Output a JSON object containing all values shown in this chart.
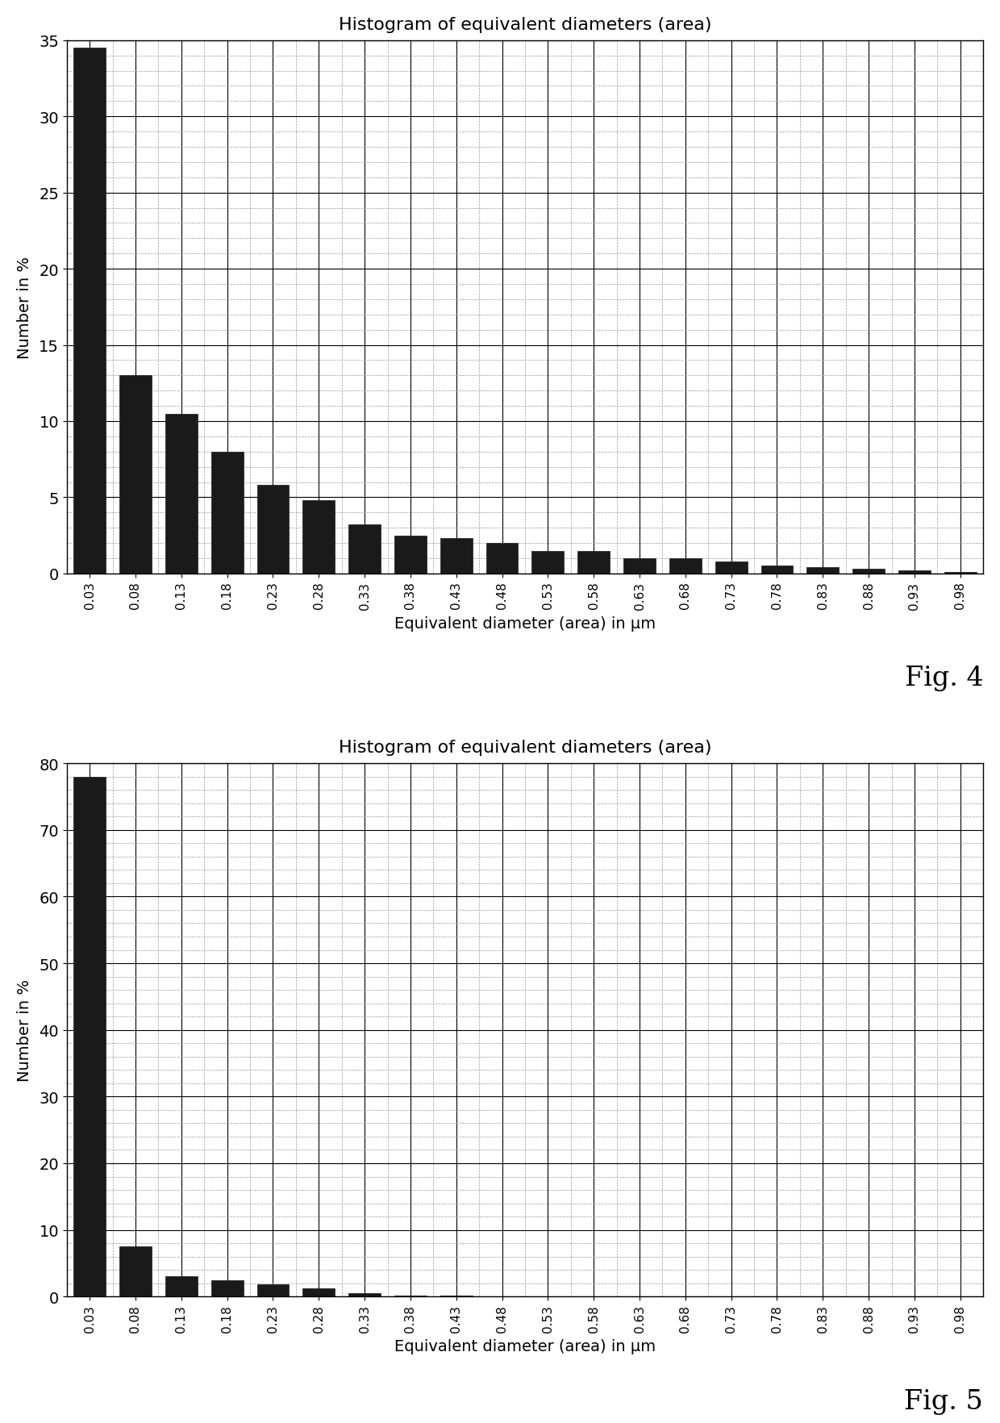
{
  "fig4": {
    "title": "Histogram of equivalent diameters (area)",
    "xlabel": "Equivalent diameter (area) in μm",
    "ylabel": "Number in %",
    "fig_label": "Fig. 4",
    "ylim": [
      0,
      35
    ],
    "yticks": [
      0,
      5,
      10,
      15,
      20,
      25,
      30,
      35
    ],
    "bar_color": "#1a1a1a",
    "values": [
      34.5,
      13.0,
      10.5,
      8.0,
      5.8,
      4.8,
      3.2,
      2.5,
      2.3,
      2.0,
      1.5,
      1.5,
      1.0,
      1.0,
      0.8,
      0.5,
      0.4,
      0.3,
      0.2,
      0.1
    ]
  },
  "fig5": {
    "title": "Histogram of equivalent diameters (area)",
    "xlabel": "Equivalent diameter (area) in μm",
    "ylabel": "Number in %",
    "fig_label": "Fig. 5",
    "ylim": [
      0,
      80
    ],
    "yticks": [
      0,
      10,
      20,
      30,
      40,
      50,
      60,
      70,
      80
    ],
    "bar_color": "#1a1a1a",
    "values": [
      78.0,
      7.5,
      3.0,
      2.5,
      1.8,
      1.2,
      0.5,
      0.2,
      0.1,
      0.05,
      0.02,
      0.02,
      0.02,
      0.02,
      0.02,
      0.02,
      0.02,
      0.02,
      0.02,
      0.02
    ]
  },
  "xtick_labels": [
    "0.03",
    "0.08",
    "0.13",
    "0.18",
    "0.23",
    "0.28",
    "0.33",
    "0.38",
    "0.43",
    "0.48",
    "0.53",
    "0.58",
    "0.63",
    "0.68",
    "0.73",
    "0.78",
    "0.83",
    "0.88",
    "0.93",
    "0.98"
  ],
  "background_color": "#ffffff",
  "bar_width": 0.7
}
